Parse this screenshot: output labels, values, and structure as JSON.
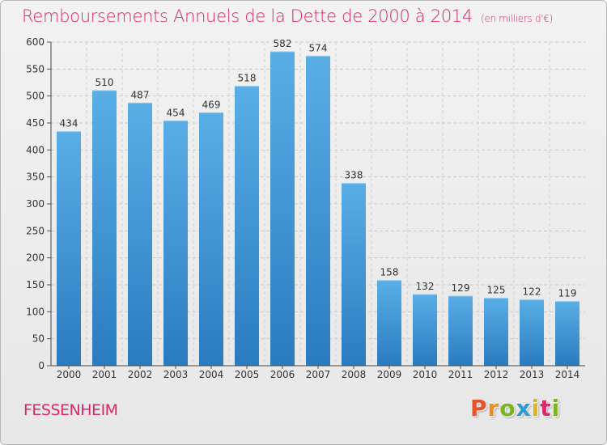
{
  "header": {
    "title": "Remboursements Annuels de la Dette de 2000 à 2014",
    "unit": "(en milliers d'€)"
  },
  "footer": {
    "city": "FESSENHEIM",
    "logo": "Proxiti"
  },
  "colors": {
    "title": "#d8296a",
    "bar_top": "#5aaee6",
    "bar_bottom": "#2a7bbf",
    "logo_letters": [
      "#e8532a",
      "#f08c22",
      "#7ab51d",
      "#2a9bd6",
      "#e2b21a",
      "#d8296a",
      "#7ab51d"
    ]
  },
  "chart_data": {
    "type": "bar",
    "title": "Remboursements Annuels de la Dette de 2000 à 2014",
    "subtitle": "(en milliers d'€)",
    "categories": [
      "2000",
      "2001",
      "2002",
      "2003",
      "2004",
      "2005",
      "2006",
      "2007",
      "2008",
      "2009",
      "2010",
      "2011",
      "2012",
      "2013",
      "2014"
    ],
    "values": [
      434,
      510,
      487,
      454,
      469,
      518,
      582,
      574,
      338,
      158,
      132,
      129,
      125,
      122,
      119
    ],
    "ylim": [
      0,
      600
    ],
    "yticks": [
      0,
      50,
      100,
      150,
      200,
      250,
      300,
      350,
      400,
      450,
      500,
      550,
      600
    ],
    "grid": true
  }
}
